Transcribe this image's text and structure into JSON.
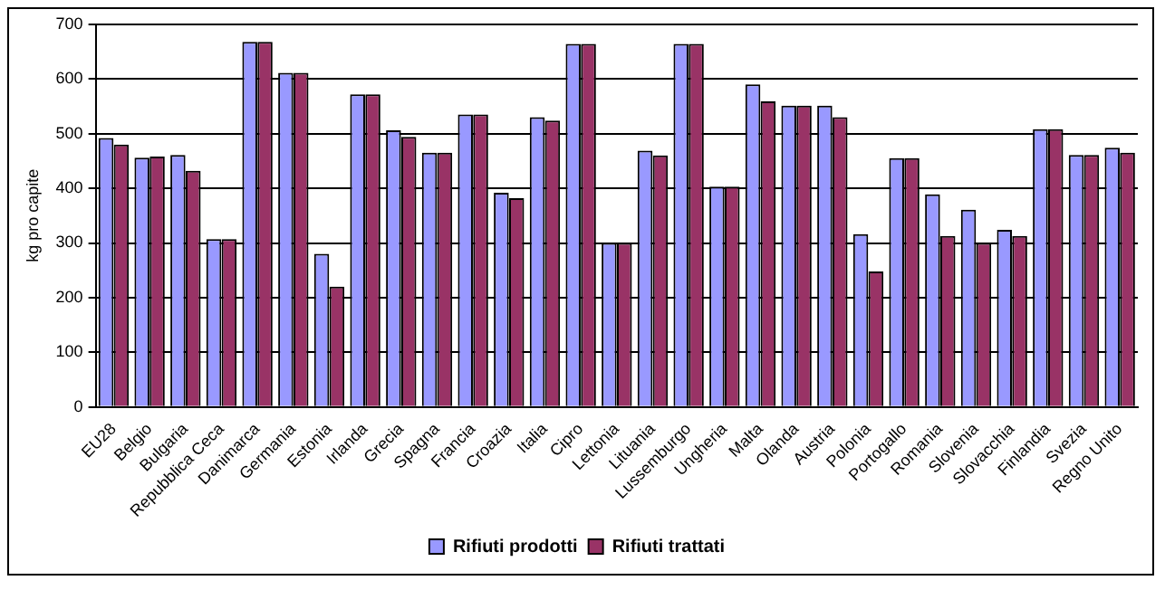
{
  "chart_data": {
    "type": "bar",
    "ylabel": "kg pro capite",
    "categories": [
      "EU28",
      "Belgio",
      "Bulgaria",
      "Repubblica Ceca",
      "Danimarca",
      "Germania",
      "Estonia",
      "Irlanda",
      "Grecia",
      "Spagna",
      "Francia",
      "Croazia",
      "Italia",
      "Cipro",
      "Lettonia",
      "Lituania",
      "Lussemburgo",
      "Ungheria",
      "Malta",
      "Olanda",
      "Austria",
      "Polonia",
      "Portogallo",
      "Romania",
      "Slovenia",
      "Slovacchia",
      "Finlandia",
      "Svezia",
      "Regno Unito"
    ],
    "series": [
      {
        "name": "Rifiuti prodotti",
        "color": "#9999ff",
        "values": [
          492,
          456,
          461,
          307,
          668,
          611,
          280,
          572,
          506,
          465,
          535,
          392,
          530,
          664,
          300,
          469,
          664,
          403,
          590,
          551,
          551,
          316,
          455,
          389,
          361,
          324,
          508,
          461,
          474
        ]
      },
      {
        "name": "Rifiuti trattati",
        "color": "#993366",
        "values": [
          480,
          458,
          432,
          307,
          668,
          611,
          220,
          572,
          494,
          465,
          535,
          382,
          524,
          664,
          300,
          460,
          664,
          403,
          559,
          551,
          530,
          248,
          455,
          313,
          300,
          313,
          508,
          461,
          465
        ]
      }
    ],
    "ylim": [
      0,
      700
    ],
    "yticks": [
      0,
      100,
      200,
      300,
      400,
      500,
      600,
      700
    ],
    "grid": "y",
    "legend": "bottom"
  }
}
